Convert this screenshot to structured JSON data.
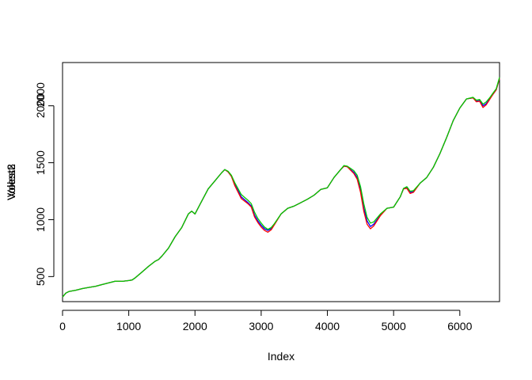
{
  "chart_data": {
    "type": "line",
    "title": "",
    "xlabel": "Index",
    "ylabel_overlay": [
      "Volest",
      "Volest2",
      "Volest3"
    ],
    "xlim": [
      0,
      6600
    ],
    "ylim": [
      280,
      2380
    ],
    "x_ticks": [
      0,
      1000,
      2000,
      3000,
      4000,
      5000,
      6000
    ],
    "y_ticks": [
      500,
      1000,
      1500,
      2000
    ],
    "grid": false,
    "legend": "none",
    "series": [
      {
        "color": "#0000ff",
        "points": [
          [
            0,
            320
          ],
          [
            50,
            355
          ],
          [
            100,
            370
          ],
          [
            200,
            380
          ],
          [
            300,
            395
          ],
          [
            400,
            405
          ],
          [
            500,
            415
          ],
          [
            600,
            430
          ],
          [
            700,
            445
          ],
          [
            800,
            460
          ],
          [
            900,
            458
          ],
          [
            1000,
            465
          ],
          [
            1050,
            470
          ],
          [
            1100,
            490
          ],
          [
            1200,
            540
          ],
          [
            1300,
            590
          ],
          [
            1400,
            635
          ],
          [
            1450,
            650
          ],
          [
            1500,
            680
          ],
          [
            1600,
            750
          ],
          [
            1700,
            850
          ],
          [
            1800,
            930
          ],
          [
            1900,
            1050
          ],
          [
            1950,
            1075
          ],
          [
            2000,
            1050
          ],
          [
            2100,
            1160
          ],
          [
            2200,
            1270
          ],
          [
            2300,
            1340
          ],
          [
            2400,
            1410
          ],
          [
            2450,
            1440
          ],
          [
            2500,
            1420
          ],
          [
            2550,
            1380
          ],
          [
            2600,
            1310
          ],
          [
            2700,
            1200
          ],
          [
            2800,
            1150
          ],
          [
            2850,
            1120
          ],
          [
            2900,
            1040
          ],
          [
            2950,
            990
          ],
          [
            3000,
            950
          ],
          [
            3050,
            920
          ],
          [
            3100,
            905
          ],
          [
            3150,
            920
          ],
          [
            3200,
            960
          ],
          [
            3300,
            1050
          ],
          [
            3400,
            1100
          ],
          [
            3500,
            1120
          ],
          [
            3600,
            1150
          ],
          [
            3700,
            1180
          ],
          [
            3800,
            1215
          ],
          [
            3900,
            1265
          ],
          [
            4000,
            1280
          ],
          [
            4100,
            1370
          ],
          [
            4200,
            1440
          ],
          [
            4250,
            1470
          ],
          [
            4300,
            1465
          ],
          [
            4350,
            1440
          ],
          [
            4400,
            1415
          ],
          [
            4450,
            1370
          ],
          [
            4500,
            1260
          ],
          [
            4550,
            1100
          ],
          [
            4600,
            990
          ],
          [
            4650,
            940
          ],
          [
            4700,
            960
          ],
          [
            4800,
            1040
          ],
          [
            4900,
            1100
          ],
          [
            5000,
            1110
          ],
          [
            5100,
            1200
          ],
          [
            5150,
            1270
          ],
          [
            5200,
            1280
          ],
          [
            5250,
            1240
          ],
          [
            5300,
            1245
          ],
          [
            5400,
            1320
          ],
          [
            5500,
            1370
          ],
          [
            5600,
            1460
          ],
          [
            5700,
            1580
          ],
          [
            5800,
            1720
          ],
          [
            5900,
            1870
          ],
          [
            6000,
            1980
          ],
          [
            6100,
            2060
          ],
          [
            6200,
            2070
          ],
          [
            6250,
            2040
          ],
          [
            6300,
            2045
          ],
          [
            6350,
            2000
          ],
          [
            6400,
            2020
          ],
          [
            6450,
            2060
          ],
          [
            6500,
            2100
          ],
          [
            6550,
            2140
          ],
          [
            6600,
            2240
          ]
        ]
      },
      {
        "color": "#ff0000",
        "points": [
          [
            0,
            320
          ],
          [
            50,
            355
          ],
          [
            100,
            370
          ],
          [
            200,
            380
          ],
          [
            300,
            395
          ],
          [
            400,
            405
          ],
          [
            500,
            415
          ],
          [
            600,
            430
          ],
          [
            700,
            445
          ],
          [
            800,
            460
          ],
          [
            900,
            458
          ],
          [
            1000,
            465
          ],
          [
            1050,
            470
          ],
          [
            1100,
            490
          ],
          [
            1200,
            540
          ],
          [
            1300,
            590
          ],
          [
            1400,
            635
          ],
          [
            1450,
            650
          ],
          [
            1500,
            680
          ],
          [
            1600,
            750
          ],
          [
            1700,
            850
          ],
          [
            1800,
            930
          ],
          [
            1900,
            1050
          ],
          [
            1950,
            1075
          ],
          [
            2000,
            1050
          ],
          [
            2100,
            1160
          ],
          [
            2200,
            1270
          ],
          [
            2300,
            1340
          ],
          [
            2400,
            1410
          ],
          [
            2450,
            1440
          ],
          [
            2500,
            1420
          ],
          [
            2550,
            1380
          ],
          [
            2600,
            1300
          ],
          [
            2700,
            1185
          ],
          [
            2800,
            1140
          ],
          [
            2850,
            1110
          ],
          [
            2900,
            1025
          ],
          [
            2950,
            975
          ],
          [
            3000,
            935
          ],
          [
            3050,
            905
          ],
          [
            3100,
            890
          ],
          [
            3150,
            910
          ],
          [
            3200,
            955
          ],
          [
            3300,
            1050
          ],
          [
            3400,
            1100
          ],
          [
            3500,
            1120
          ],
          [
            3600,
            1150
          ],
          [
            3700,
            1180
          ],
          [
            3800,
            1215
          ],
          [
            3900,
            1265
          ],
          [
            4000,
            1280
          ],
          [
            4100,
            1370
          ],
          [
            4200,
            1440
          ],
          [
            4250,
            1470
          ],
          [
            4300,
            1465
          ],
          [
            4350,
            1435
          ],
          [
            4400,
            1405
          ],
          [
            4450,
            1355
          ],
          [
            4500,
            1240
          ],
          [
            4550,
            1075
          ],
          [
            4600,
            960
          ],
          [
            4650,
            920
          ],
          [
            4700,
            945
          ],
          [
            4800,
            1035
          ],
          [
            4900,
            1100
          ],
          [
            5000,
            1110
          ],
          [
            5100,
            1200
          ],
          [
            5150,
            1270
          ],
          [
            5200,
            1275
          ],
          [
            5250,
            1230
          ],
          [
            5300,
            1240
          ],
          [
            5400,
            1320
          ],
          [
            5500,
            1370
          ],
          [
            5600,
            1460
          ],
          [
            5700,
            1580
          ],
          [
            5800,
            1720
          ],
          [
            5900,
            1870
          ],
          [
            6000,
            1980
          ],
          [
            6100,
            2060
          ],
          [
            6200,
            2070
          ],
          [
            6250,
            2035
          ],
          [
            6300,
            2040
          ],
          [
            6350,
            1985
          ],
          [
            6400,
            2010
          ],
          [
            6450,
            2055
          ],
          [
            6500,
            2100
          ],
          [
            6550,
            2140
          ],
          [
            6600,
            2240
          ]
        ]
      },
      {
        "color": "#00cc00",
        "points": [
          [
            0,
            320
          ],
          [
            50,
            355
          ],
          [
            100,
            370
          ],
          [
            200,
            380
          ],
          [
            300,
            395
          ],
          [
            400,
            405
          ],
          [
            500,
            415
          ],
          [
            600,
            430
          ],
          [
            700,
            445
          ],
          [
            800,
            460
          ],
          [
            900,
            458
          ],
          [
            1000,
            465
          ],
          [
            1050,
            470
          ],
          [
            1100,
            490
          ],
          [
            1200,
            540
          ],
          [
            1300,
            590
          ],
          [
            1400,
            635
          ],
          [
            1450,
            650
          ],
          [
            1500,
            680
          ],
          [
            1600,
            750
          ],
          [
            1700,
            850
          ],
          [
            1800,
            930
          ],
          [
            1900,
            1050
          ],
          [
            1950,
            1075
          ],
          [
            2000,
            1050
          ],
          [
            2100,
            1160
          ],
          [
            2200,
            1270
          ],
          [
            2300,
            1340
          ],
          [
            2400,
            1410
          ],
          [
            2450,
            1440
          ],
          [
            2500,
            1425
          ],
          [
            2550,
            1390
          ],
          [
            2600,
            1325
          ],
          [
            2700,
            1220
          ],
          [
            2800,
            1170
          ],
          [
            2850,
            1140
          ],
          [
            2900,
            1065
          ],
          [
            2950,
            1010
          ],
          [
            3000,
            970
          ],
          [
            3050,
            935
          ],
          [
            3100,
            915
          ],
          [
            3150,
            930
          ],
          [
            3200,
            965
          ],
          [
            3300,
            1050
          ],
          [
            3400,
            1100
          ],
          [
            3500,
            1120
          ],
          [
            3600,
            1150
          ],
          [
            3700,
            1180
          ],
          [
            3800,
            1215
          ],
          [
            3900,
            1265
          ],
          [
            4000,
            1280
          ],
          [
            4100,
            1370
          ],
          [
            4200,
            1440
          ],
          [
            4250,
            1475
          ],
          [
            4300,
            1470
          ],
          [
            4350,
            1450
          ],
          [
            4400,
            1430
          ],
          [
            4450,
            1390
          ],
          [
            4500,
            1290
          ],
          [
            4550,
            1140
          ],
          [
            4600,
            1020
          ],
          [
            4650,
            970
          ],
          [
            4700,
            980
          ],
          [
            4800,
            1050
          ],
          [
            4900,
            1100
          ],
          [
            5000,
            1110
          ],
          [
            5100,
            1200
          ],
          [
            5150,
            1275
          ],
          [
            5200,
            1290
          ],
          [
            5250,
            1250
          ],
          [
            5300,
            1255
          ],
          [
            5400,
            1320
          ],
          [
            5500,
            1370
          ],
          [
            5600,
            1460
          ],
          [
            5700,
            1580
          ],
          [
            5800,
            1720
          ],
          [
            5900,
            1870
          ],
          [
            6000,
            1980
          ],
          [
            6100,
            2060
          ],
          [
            6200,
            2075
          ],
          [
            6250,
            2050
          ],
          [
            6300,
            2055
          ],
          [
            6350,
            2015
          ],
          [
            6400,
            2035
          ],
          [
            6450,
            2070
          ],
          [
            6500,
            2110
          ],
          [
            6550,
            2150
          ],
          [
            6600,
            2250
          ]
        ]
      }
    ]
  }
}
